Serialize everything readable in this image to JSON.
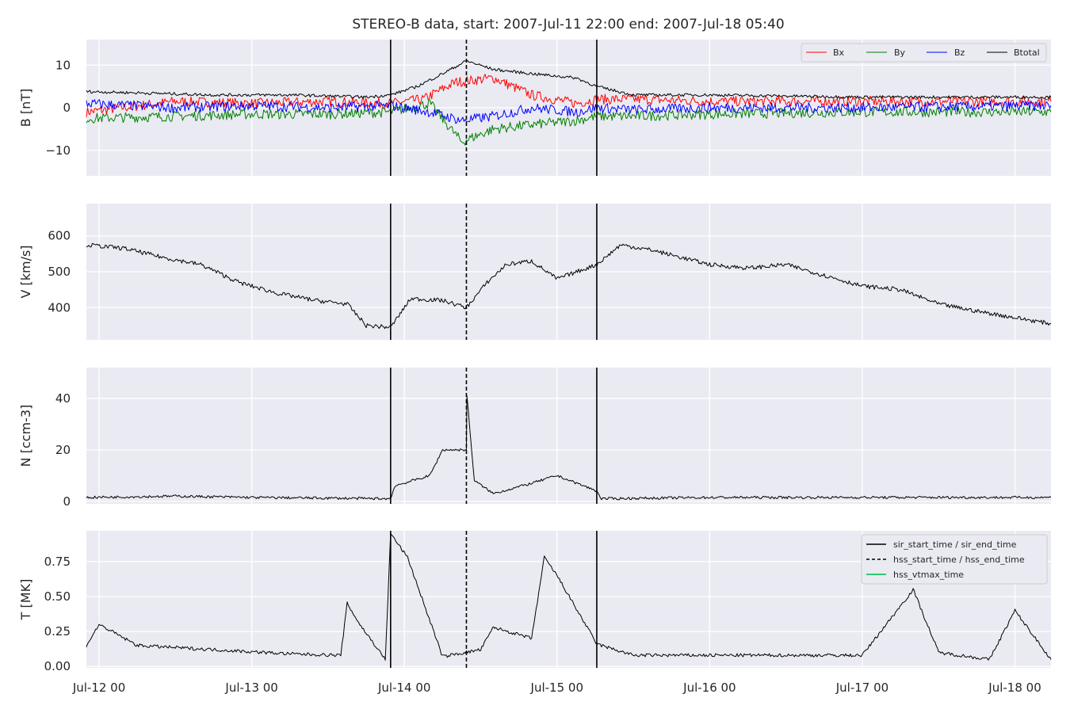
{
  "title": "STEREO-B data, start: 2007-Jul-11 22:00  end: 2007-Jul-18 05:40",
  "colors": {
    "panel_bg": "#eaeaf2",
    "grid": "#ffffff",
    "Bx": "#ff0000",
    "By": "#008000",
    "Bz": "#0000ff",
    "Btotal": "#000000",
    "hss_vtmax": "#2ecc71"
  },
  "x_axis": {
    "start": "2007-07-11 22:00",
    "end": "2007-07-18 05:40",
    "ticks": [
      {
        "t": "2007-07-12 00:00",
        "label": "Jul-12 00"
      },
      {
        "t": "2007-07-13 00:00",
        "label": "Jul-13 00"
      },
      {
        "t": "2007-07-14 00:00",
        "label": "Jul-14 00"
      },
      {
        "t": "2007-07-15 00:00",
        "label": "Jul-15 00"
      },
      {
        "t": "2007-07-16 00:00",
        "label": "Jul-16 00"
      },
      {
        "t": "2007-07-17 00:00",
        "label": "Jul-17 00"
      },
      {
        "t": "2007-07-18 00:00",
        "label": "Jul-18 00"
      }
    ]
  },
  "markers": {
    "sir_start_time": "2007-07-13 21:50",
    "hss_start_time": "2007-07-14 09:45",
    "sir_end_time": "2007-07-15 06:15"
  },
  "legend_b": [
    "Bx",
    "By",
    "Bz",
    "Btotal"
  ],
  "legend_t": [
    "sir_start_time / sir_end_time",
    "hss_start_time / hss_end_time",
    "hss_vtmax_time"
  ],
  "chart_data": [
    {
      "type": "line",
      "ylabel": "B [nT]",
      "ylim": [
        -16,
        16
      ],
      "yticks": [
        {
          "v": -10,
          "label": "−10"
        },
        {
          "v": 0,
          "label": "0"
        },
        {
          "v": 10,
          "label": "10"
        }
      ],
      "legend_position": "top-right",
      "grid": true,
      "series": [
        {
          "name": "Bx",
          "points": [
            [
              "2007-07-11 22:00",
              -1
            ],
            [
              "2007-07-12 12:00",
              1.5
            ],
            [
              "2007-07-13 00:00",
              1
            ],
            [
              "2007-07-13 12:00",
              1.5
            ],
            [
              "2007-07-13 21:50",
              1
            ],
            [
              "2007-07-14 03:00",
              2
            ],
            [
              "2007-07-14 08:00",
              6
            ],
            [
              "2007-07-14 14:00",
              7
            ],
            [
              "2007-07-14 20:00",
              3
            ],
            [
              "2007-07-15 03:00",
              1
            ],
            [
              "2007-07-15 06:15",
              2
            ],
            [
              "2007-07-15 12:00",
              2
            ],
            [
              "2007-07-16 00:00",
              1.5
            ],
            [
              "2007-07-17 00:00",
              1.5
            ],
            [
              "2007-07-18 05:40",
              1.5
            ]
          ]
        },
        {
          "name": "By",
          "points": [
            [
              "2007-07-11 22:00",
              -2.5
            ],
            [
              "2007-07-12 12:00",
              -2
            ],
            [
              "2007-07-13 00:00",
              -1.5
            ],
            [
              "2007-07-13 12:00",
              -1.5
            ],
            [
              "2007-07-13 21:50",
              -1
            ],
            [
              "2007-07-14 04:00",
              1
            ],
            [
              "2007-07-14 09:00",
              -8
            ],
            [
              "2007-07-14 14:00",
              -5
            ],
            [
              "2007-07-14 20:00",
              -4
            ],
            [
              "2007-07-15 03:00",
              -3
            ],
            [
              "2007-07-15 06:15",
              -2
            ],
            [
              "2007-07-15 12:00",
              -2
            ],
            [
              "2007-07-16 00:00",
              -1.5
            ],
            [
              "2007-07-17 00:00",
              -1
            ],
            [
              "2007-07-18 05:40",
              -1
            ]
          ]
        },
        {
          "name": "Bz",
          "points": [
            [
              "2007-07-11 22:00",
              1
            ],
            [
              "2007-07-12 12:00",
              0
            ],
            [
              "2007-07-13 00:00",
              0.5
            ],
            [
              "2007-07-13 12:00",
              0
            ],
            [
              "2007-07-13 21:50",
              0.5
            ],
            [
              "2007-07-14 04:00",
              -1
            ],
            [
              "2007-07-14 09:00",
              -3
            ],
            [
              "2007-07-14 14:00",
              -2
            ],
            [
              "2007-07-14 20:00",
              0
            ],
            [
              "2007-07-15 03:00",
              -1
            ],
            [
              "2007-07-15 06:15",
              0
            ],
            [
              "2007-07-15 12:00",
              -0.5
            ],
            [
              "2007-07-16 00:00",
              0
            ],
            [
              "2007-07-17 00:00",
              0
            ],
            [
              "2007-07-18 05:40",
              0.5
            ]
          ]
        },
        {
          "name": "Btotal",
          "points": [
            [
              "2007-07-11 22:00",
              3.8
            ],
            [
              "2007-07-12 06:00",
              3.5
            ],
            [
              "2007-07-12 18:00",
              3
            ],
            [
              "2007-07-13 06:00",
              3
            ],
            [
              "2007-07-13 18:00",
              2.5
            ],
            [
              "2007-07-13 21:50",
              3
            ],
            [
              "2007-07-14 02:00",
              5
            ],
            [
              "2007-07-14 06:00",
              8
            ],
            [
              "2007-07-14 09:45",
              11
            ],
            [
              "2007-07-14 14:00",
              9
            ],
            [
              "2007-07-14 20:00",
              8
            ],
            [
              "2007-07-15 03:00",
              7
            ],
            [
              "2007-07-15 06:15",
              5
            ],
            [
              "2007-07-15 12:00",
              3
            ],
            [
              "2007-07-16 00:00",
              3
            ],
            [
              "2007-07-17 00:00",
              2.5
            ],
            [
              "2007-07-18 05:40",
              2.5
            ]
          ]
        }
      ]
    },
    {
      "type": "line",
      "ylabel": "V [km/s]",
      "ylim": [
        310,
        690
      ],
      "yticks": [
        {
          "v": 400,
          "label": "400"
        },
        {
          "v": 500,
          "label": "500"
        },
        {
          "v": 600,
          "label": "600"
        }
      ],
      "grid": true,
      "series": [
        {
          "name": "V",
          "points": [
            [
              "2007-07-11 22:00",
              575
            ],
            [
              "2007-07-12 04:00",
              565
            ],
            [
              "2007-07-12 10:00",
              540
            ],
            [
              "2007-07-12 16:00",
              520
            ],
            [
              "2007-07-12 22:00",
              470
            ],
            [
              "2007-07-13 04:00",
              440
            ],
            [
              "2007-07-13 10:00",
              420
            ],
            [
              "2007-07-13 15:00",
              410
            ],
            [
              "2007-07-13 18:00",
              350
            ],
            [
              "2007-07-13 21:50",
              345
            ],
            [
              "2007-07-14 01:00",
              425
            ],
            [
              "2007-07-14 06:00",
              420
            ],
            [
              "2007-07-14 09:45",
              400
            ],
            [
              "2007-07-14 13:00",
              470
            ],
            [
              "2007-07-14 16:00",
              520
            ],
            [
              "2007-07-14 20:00",
              530
            ],
            [
              "2007-07-15 00:00",
              480
            ],
            [
              "2007-07-15 06:15",
              520
            ],
            [
              "2007-07-15 10:00",
              575
            ],
            [
              "2007-07-15 15:00",
              560
            ],
            [
              "2007-07-16 00:00",
              520
            ],
            [
              "2007-07-16 06:00",
              510
            ],
            [
              "2007-07-16 12:00",
              520
            ],
            [
              "2007-07-16 18:00",
              490
            ],
            [
              "2007-07-17 00:00",
              460
            ],
            [
              "2007-07-17 06:00",
              450
            ],
            [
              "2007-07-17 12:00",
              410
            ],
            [
              "2007-07-17 18:00",
              390
            ],
            [
              "2007-07-18 05:40",
              355
            ]
          ]
        }
      ]
    },
    {
      "type": "line",
      "ylabel": "N [ccm-3]",
      "ylim": [
        -1,
        52
      ],
      "yticks": [
        {
          "v": 0,
          "label": "0"
        },
        {
          "v": 20,
          "label": "20"
        },
        {
          "v": 40,
          "label": "40"
        }
      ],
      "grid": true,
      "series": [
        {
          "name": "N",
          "points": [
            [
              "2007-07-11 22:00",
              1.5
            ],
            [
              "2007-07-12 12:00",
              2
            ],
            [
              "2007-07-13 00:00",
              1.5
            ],
            [
              "2007-07-13 21:50",
              1
            ],
            [
              "2007-07-13 22:30",
              6
            ],
            [
              "2007-07-14 04:00",
              10
            ],
            [
              "2007-07-14 06:00",
              20
            ],
            [
              "2007-07-14 09:45",
              20
            ],
            [
              "2007-07-14 09:50",
              41
            ],
            [
              "2007-07-14 11:00",
              8
            ],
            [
              "2007-07-14 14:00",
              3
            ],
            [
              "2007-07-14 20:00",
              7
            ],
            [
              "2007-07-15 00:00",
              10
            ],
            [
              "2007-07-15 06:15",
              4
            ],
            [
              "2007-07-15 07:00",
              1
            ],
            [
              "2007-07-16 00:00",
              1.5
            ],
            [
              "2007-07-17 00:00",
              1.5
            ],
            [
              "2007-07-18 05:40",
              1.5
            ]
          ]
        }
      ]
    },
    {
      "type": "line",
      "ylabel": "T [MK]",
      "ylim": [
        -0.01,
        0.97
      ],
      "yticks": [
        {
          "v": 0,
          "label": "0.00"
        },
        {
          "v": 0.25,
          "label": "0.25"
        },
        {
          "v": 0.5,
          "label": "0.50"
        },
        {
          "v": 0.75,
          "label": "0.75"
        }
      ],
      "legend_position": "top-right",
      "grid": true,
      "series": [
        {
          "name": "T",
          "points": [
            [
              "2007-07-11 22:00",
              0.15
            ],
            [
              "2007-07-12 00:00",
              0.3
            ],
            [
              "2007-07-12 06:00",
              0.15
            ],
            [
              "2007-07-12 18:00",
              0.12
            ],
            [
              "2007-07-13 06:00",
              0.09
            ],
            [
              "2007-07-13 14:00",
              0.08
            ],
            [
              "2007-07-13 15:00",
              0.45
            ],
            [
              "2007-07-13 17:00",
              0.3
            ],
            [
              "2007-07-13 21:00",
              0.05
            ],
            [
              "2007-07-13 21:50",
              0.95
            ],
            [
              "2007-07-14 00:30",
              0.78
            ],
            [
              "2007-07-14 06:00",
              0.07
            ],
            [
              "2007-07-14 12:00",
              0.12
            ],
            [
              "2007-07-14 14:00",
              0.28
            ],
            [
              "2007-07-14 20:00",
              0.2
            ],
            [
              "2007-07-14 22:00",
              0.78
            ],
            [
              "2007-07-15 00:00",
              0.65
            ],
            [
              "2007-07-15 06:15",
              0.16
            ],
            [
              "2007-07-15 12:00",
              0.08
            ],
            [
              "2007-07-16 00:00",
              0.08
            ],
            [
              "2007-07-17 00:00",
              0.08
            ],
            [
              "2007-07-17 08:00",
              0.55
            ],
            [
              "2007-07-17 12:00",
              0.1
            ],
            [
              "2007-07-17 20:00",
              0.05
            ],
            [
              "2007-07-18 00:00",
              0.4
            ],
            [
              "2007-07-18 05:40",
              0.05
            ]
          ]
        }
      ]
    }
  ]
}
